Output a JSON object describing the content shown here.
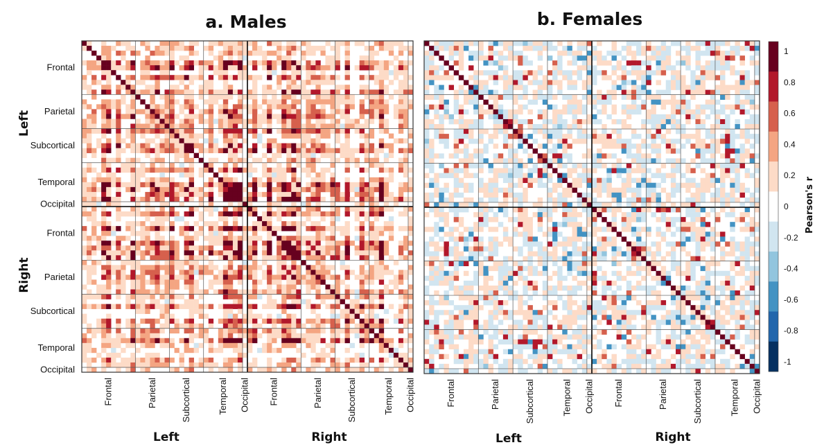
{
  "chart_data": [
    {
      "type": "heatmap",
      "title": "a. Males",
      "row_groups": [
        "Frontal",
        "Parietal",
        "Subcortical",
        "Temporal",
        "Occipital",
        "Frontal",
        "Parietal",
        "Subcortical",
        "Temporal",
        "Occipital"
      ],
      "col_groups": [
        "Frontal",
        "Parietal",
        "Subcortical",
        "Temporal",
        "Occipital",
        "Frontal",
        "Parietal",
        "Subcortical",
        "Temporal",
        "Occipital"
      ],
      "row_hemispheres": [
        "Left",
        "Right"
      ],
      "col_hemispheres": [
        "Left",
        "Right"
      ],
      "n_regions": 68,
      "value_range": [
        -1,
        1
      ],
      "diagonal": 1,
      "pattern": "predominantly positive (red) correlations, strongest in frontal/subcortical blocks"
    },
    {
      "type": "heatmap",
      "title": "b. Females",
      "row_groups": [
        "Frontal",
        "Parietal",
        "Subcortical",
        "Temporal",
        "Occipital",
        "Frontal",
        "Parietal",
        "Subcortical",
        "Temporal",
        "Occipital"
      ],
      "col_groups": [
        "Frontal",
        "Parietal",
        "Subcortical",
        "Temporal",
        "Occipital",
        "Frontal",
        "Parietal",
        "Subcortical",
        "Temporal",
        "Occipital"
      ],
      "col_hemispheres": [
        "Left",
        "Right"
      ],
      "n_regions": 68,
      "value_range": [
        -1,
        1
      ],
      "diagonal": 1,
      "pattern": "mixed weak positive and negative correlations"
    }
  ],
  "colorbar": {
    "label": "Pearson's r",
    "ticks": [
      "1",
      "0.8",
      "0.6",
      "0.4",
      "0.2",
      "0",
      "-0.2",
      "-0.4",
      "-0.6",
      "-0.8",
      "-1"
    ],
    "tick_values": [
      1,
      0.8,
      0.6,
      0.4,
      0.2,
      0,
      -0.2,
      -0.4,
      -0.6,
      -0.8,
      -1
    ],
    "colors": [
      "#053061",
      "#2166ac",
      "#4393c3",
      "#92c5de",
      "#d1e5f0",
      "#ffffff",
      "#fddbc7",
      "#f4a582",
      "#d6604d",
      "#b2182b",
      "#67001f"
    ]
  }
}
